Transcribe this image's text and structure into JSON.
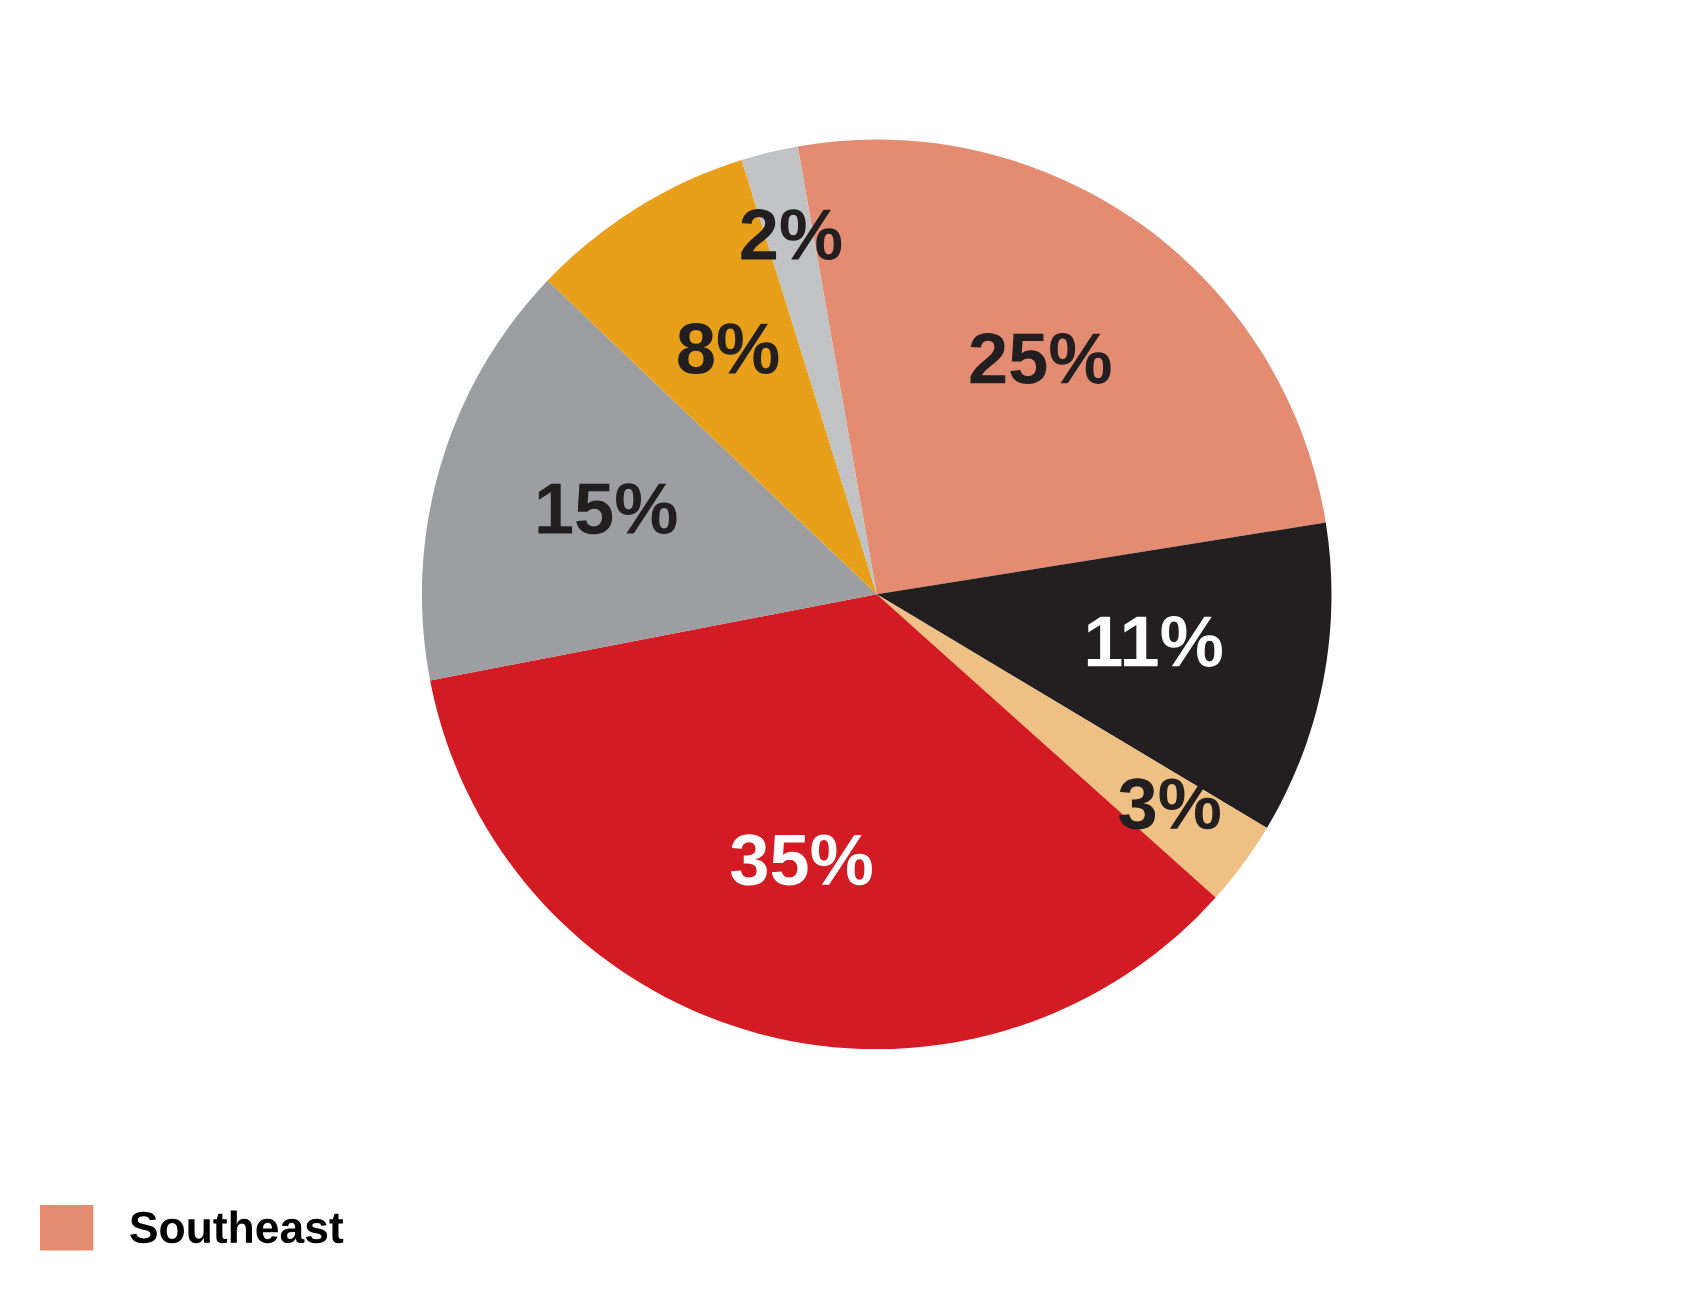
{
  "chart_data": {
    "type": "pie",
    "categories": [
      "Southeast",
      null,
      null,
      null,
      null,
      null,
      null
    ],
    "values": [
      25,
      11,
      3,
      35,
      15,
      8,
      2
    ],
    "colors": [
      "#e38c72",
      "#231f20",
      "#efc083",
      "#d21b22",
      "#9c9ea1",
      "#e8a01a",
      "#c0c2c4"
    ],
    "value_labels": [
      "25%",
      "11%",
      "3%",
      "35%",
      "15%",
      "8%",
      "2%"
    ],
    "legend": "bottom left"
  }
}
